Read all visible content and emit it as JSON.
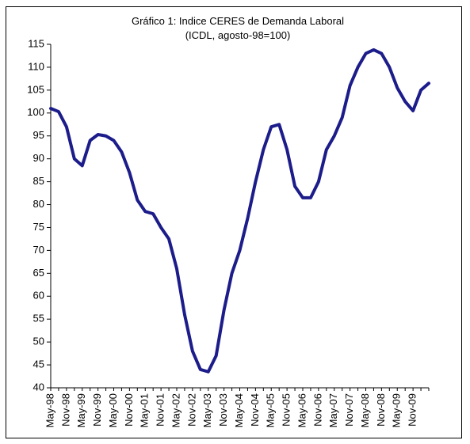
{
  "chart_data": {
    "type": "line",
    "title": "Gráfico 1: Indice CERES de Demanda Laboral",
    "subtitle": "(ICDL, agosto-98=100)",
    "categories": [
      "May-98",
      null,
      "Nov-98",
      null,
      "May-99",
      null,
      "Nov-99",
      null,
      "May-00",
      null,
      "Nov-00",
      null,
      "May-01",
      null,
      "Nov-01",
      null,
      "May-02",
      null,
      "Nov-02",
      null,
      "May-03",
      null,
      "Nov-03",
      null,
      "May-04",
      null,
      "Nov-04",
      null,
      "May-05",
      null,
      "Nov-05",
      null,
      "May-06",
      null,
      "Nov-06",
      null,
      "May-07",
      null,
      "Nov-07",
      null,
      "May-08",
      null,
      "Nov-08",
      null,
      "May-09",
      null,
      "Nov-09",
      null,
      null
    ],
    "values": [
      101,
      100.3,
      97,
      90,
      88.5,
      94,
      95.3,
      95,
      94,
      91.5,
      87,
      81,
      78.5,
      78,
      75,
      72.5,
      66,
      56,
      48,
      44,
      43.5,
      47,
      57,
      65,
      70,
      77,
      85,
      92,
      97,
      97.5,
      92,
      84,
      81.5,
      81.5,
      85,
      92,
      95,
      99,
      106,
      110,
      113,
      113.8,
      113,
      110,
      105.5,
      102.5,
      100.5,
      105,
      106.5
    ],
    "color": "#1c1c8a",
    "ylim": [
      40,
      115
    ],
    "yticks": [
      40,
      45,
      50,
      55,
      60,
      65,
      70,
      75,
      80,
      85,
      90,
      95,
      100,
      105,
      110,
      115
    ]
  }
}
